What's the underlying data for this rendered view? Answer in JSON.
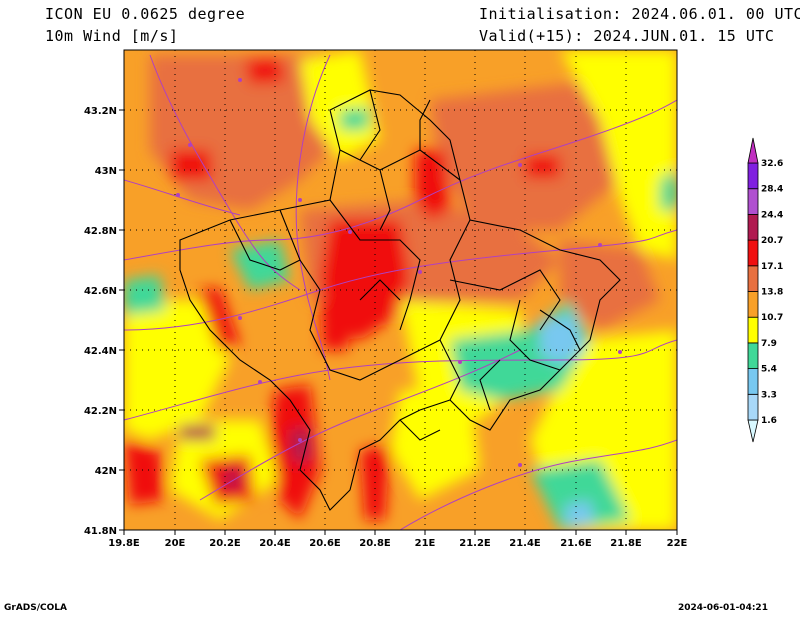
{
  "header": {
    "model": "ICON EU 0.0625 degree",
    "variable": "10m Wind [m/s]",
    "init": "Initialisation: 2024.06.01. 00 UTC",
    "valid": "Valid(+15): 2024.JUN.01. 15 UTC"
  },
  "footer": {
    "credit": "GrADS/COLA",
    "timestamp": "2024-06-01-04:21"
  },
  "map": {
    "lon_ticks": [
      "19.8E",
      "20E",
      "20.2E",
      "20.4E",
      "20.6E",
      "20.8E",
      "21E",
      "21.2E",
      "21.4E",
      "21.6E",
      "21.8E",
      "22E"
    ],
    "lat_ticks": [
      "41.8N",
      "42N",
      "42.2N",
      "42.4N",
      "42.6N",
      "42.8N",
      "43N",
      "43.2N"
    ],
    "lon_range": [
      19.8,
      22.0
    ],
    "lat_range": [
      41.8,
      43.4
    ]
  },
  "colorbar": {
    "levels": [
      "1.6",
      "3.3",
      "5.4",
      "7.9",
      "10.7",
      "13.8",
      "17.1",
      "20.7",
      "24.4",
      "28.4",
      "32.6"
    ],
    "colors": [
      "#d8f8ff",
      "#a8d8f8",
      "#78c8f0",
      "#40d898",
      "#ffff00",
      "#f8a028",
      "#e87040",
      "#f01010",
      "#b01a50",
      "#b050d0",
      "#8020e0",
      "#c030c0"
    ]
  }
}
